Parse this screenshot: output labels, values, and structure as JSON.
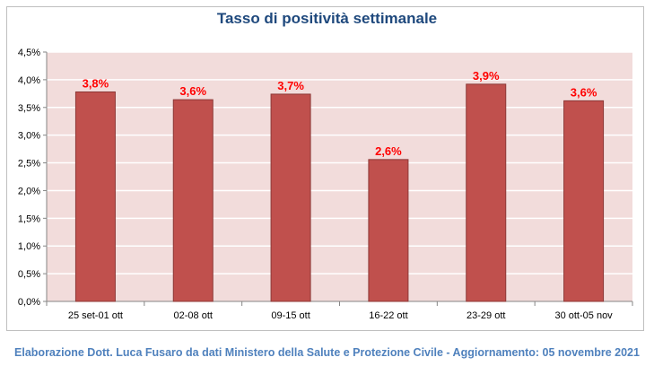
{
  "chart_data": {
    "type": "bar",
    "title": "Tasso di positività settimanale",
    "categories": [
      "25 set-01 ott",
      "02-08 ott",
      "09-15 ott",
      "16-22 ott",
      "23-29 ott",
      "30 ott-05 nov"
    ],
    "values": [
      3.78,
      3.64,
      3.74,
      2.56,
      3.92,
      3.62
    ],
    "data_labels": [
      "3,8%",
      "3,6%",
      "3,7%",
      "2,6%",
      "3,9%",
      "3,6%"
    ],
    "y_ticks": [
      "0,0%",
      "0,5%",
      "1,0%",
      "1,5%",
      "2,0%",
      "2,5%",
      "3,0%",
      "3,5%",
      "4,0%",
      "4,5%"
    ],
    "ylim": [
      0,
      4.5
    ],
    "y_step": 0.5,
    "grid": true,
    "xlabel": "",
    "ylabel": "",
    "colors": {
      "bar": "#c0504d",
      "bar_edge": "#8c3836",
      "plot_background": "#f2dcdb",
      "data_label": "#ff0000",
      "title": "#1f497d",
      "gridline": "#ffffff",
      "axis": "#868686"
    }
  },
  "footer": {
    "text": "Elaborazione Dott. Luca Fusaro da dati Ministero della Salute e Protezione Civile - Aggiornamento: 05 novembre 2021"
  }
}
